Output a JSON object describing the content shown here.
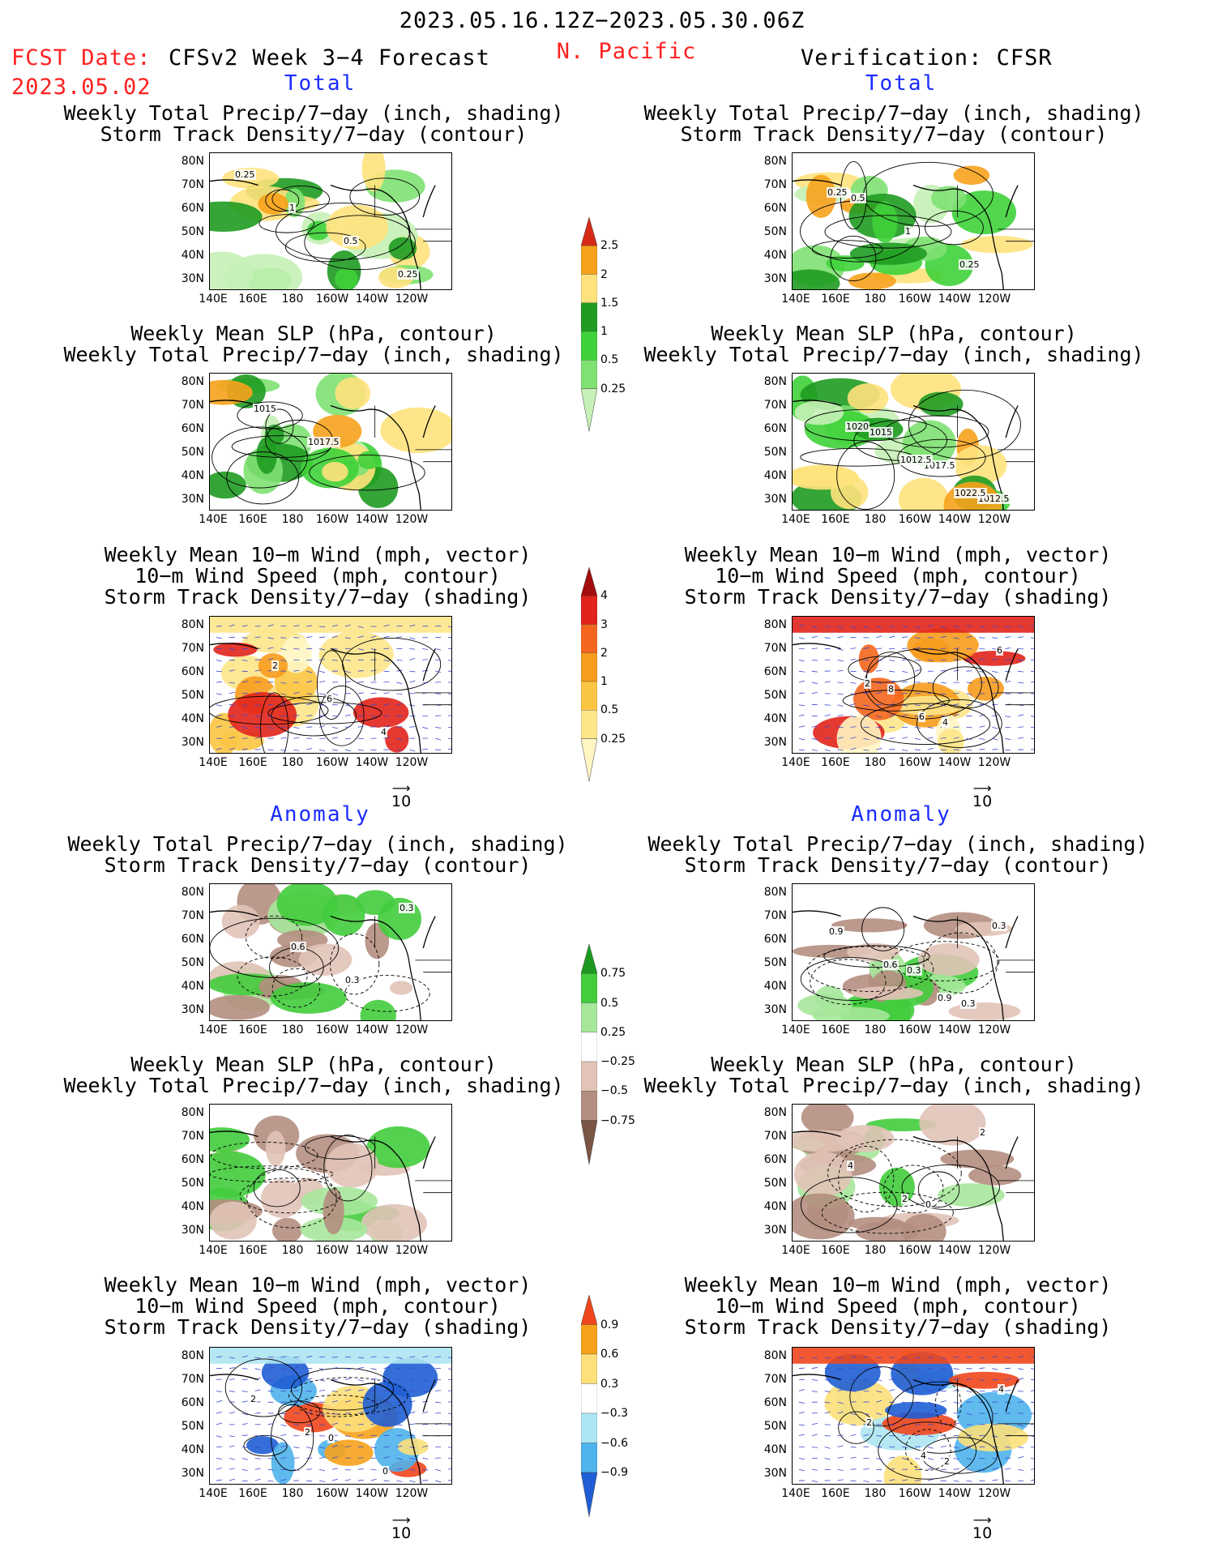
{
  "header": {
    "date_range": "2023.05.16.12Z−2023.05.30.06Z",
    "fcst_date_label": "FCST Date:",
    "fcst_date": "2023.05.02",
    "forecast_title": "CFSv2 Week 3−4 Forecast",
    "region": "N. Pacific",
    "verification": "Verification: CFSR"
  },
  "sections": {
    "total": "Total",
    "anomaly": "Anomaly"
  },
  "panel_titles": {
    "precip_storm": [
      "Weekly Total Precip/7−day (inch, shading)",
      "Storm Track Density/7−day (contour)"
    ],
    "slp_precip": [
      "Weekly Mean SLP (hPa, contour)",
      "Weekly Total Precip/7−day (inch, shading)"
    ],
    "wind_storm": [
      "Weekly Mean 10−m Wind (mph, vector)",
      "10−m Wind Speed (mph, contour)",
      "Storm Track Density/7−day (shading)"
    ]
  },
  "axes": {
    "lat_labels": [
      "80N",
      "70N",
      "60N",
      "50N",
      "40N",
      "30N"
    ],
    "lon_labels": [
      "140E",
      "160E",
      "180",
      "160W",
      "140W",
      "120W"
    ]
  },
  "vector_ref": "10",
  "contour_labels": {
    "r1l": [
      "0.25",
      "1",
      "0.5",
      "0.25"
    ],
    "r1r": [
      "0.5",
      "1",
      "0.25",
      "0.25"
    ],
    "r2l": [
      "1015",
      "1017.5"
    ],
    "r2r": [
      "1015",
      "1017.5",
      "1012.5",
      "1020",
      "1012.5",
      "1022.5"
    ],
    "r3l": [
      "2",
      "6",
      "4"
    ],
    "r3r": [
      "8",
      "4",
      "6",
      "2",
      "6"
    ],
    "r4l": [
      "0.6",
      "0.3",
      "0.3"
    ],
    "r4r": [
      "0.3",
      "0.3",
      "0.9",
      "0.6",
      "0.9",
      "0.3"
    ],
    "r5r": [
      "0",
      "2",
      "4",
      "2"
    ],
    "r6l": [
      "0",
      "0",
      "2",
      "2"
    ],
    "r6r": [
      "2",
      "4",
      "2",
      "4"
    ]
  },
  "colorbars": {
    "precip": {
      "labels": [
        "2.5",
        "2",
        "1.5",
        "1",
        "0.5",
        "0.25"
      ],
      "colors": [
        "#d42a16",
        "#f7a21c",
        "#ffe27c",
        "#1f9b21",
        "#3fd13a",
        "#7ee172",
        "#c5f1b6"
      ]
    },
    "storm": {
      "labels": [
        "4",
        "3",
        "2",
        "1",
        "0.5",
        "0.25"
      ],
      "colors": [
        "#a30d0d",
        "#e1231b",
        "#f4661e",
        "#f79c1d",
        "#fbc544",
        "#fde58a",
        "#fff6c3"
      ]
    },
    "precip_anom": {
      "labels": [
        "0.75",
        "0.5",
        "0.25",
        "−0.25",
        "−0.5",
        "−0.75"
      ],
      "colors": [
        "#1c9a1f",
        "#43cc3d",
        "#a6e79b",
        "#ffffff",
        "#e1c3b7",
        "#b48e80",
        "#7a5444"
      ]
    },
    "storm_anom": {
      "labels": [
        "0.9",
        "0.6",
        "0.3",
        "−0.3",
        "−0.6",
        "−0.9"
      ],
      "colors": [
        "#f0461c",
        "#f7a21c",
        "#fde07a",
        "#ffffff",
        "#aee5f2",
        "#4fb3ec",
        "#1f5ed4"
      ]
    }
  }
}
